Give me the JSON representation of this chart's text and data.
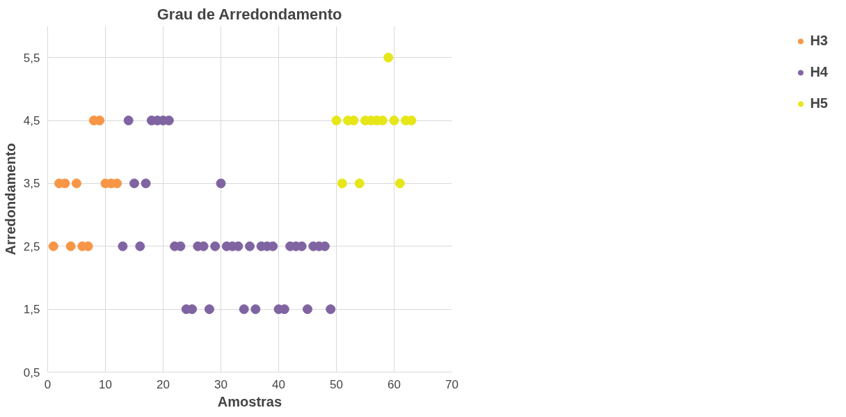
{
  "chart_data": {
    "type": "scatter",
    "title": "Grau de Arredondamento",
    "xlabel": "Amostras",
    "ylabel": "Arredondamento",
    "xlim": [
      0,
      70
    ],
    "xticks": [
      0,
      10,
      20,
      30,
      40,
      50,
      60,
      70
    ],
    "ylim": [
      0.5,
      6.0
    ],
    "yticks": [
      {
        "value": 0.5,
        "label": "0,5"
      },
      {
        "value": 1.5,
        "label": "1,5"
      },
      {
        "value": 2.5,
        "label": "2,5"
      },
      {
        "value": 3.5,
        "label": "3,5"
      },
      {
        "value": 4.5,
        "label": "4,5"
      },
      {
        "value": 5.5,
        "label": "5,5"
      }
    ],
    "grid": true,
    "legend": "right",
    "marker": "circle",
    "series": [
      {
        "name": "H3",
        "color": "#f79646",
        "x": [
          1,
          2,
          3,
          4,
          5,
          6,
          7,
          8,
          9,
          10,
          11,
          12
        ],
        "values": [
          2.5,
          3.5,
          3.5,
          2.5,
          3.5,
          2.5,
          2.5,
          4.5,
          4.5,
          3.5,
          3.5,
          3.5
        ]
      },
      {
        "name": "H4",
        "color": "#8064a2",
        "x": [
          13,
          14,
          15,
          16,
          17,
          18,
          19,
          20,
          21,
          22,
          23,
          24,
          25,
          26,
          27,
          28,
          29,
          30,
          31,
          32,
          33,
          34,
          35,
          36,
          37,
          38,
          39,
          40,
          41,
          42,
          43,
          44,
          45,
          46,
          47,
          48,
          49
        ],
        "values": [
          2.5,
          4.5,
          3.5,
          2.5,
          3.5,
          4.5,
          4.5,
          4.5,
          4.5,
          2.5,
          2.5,
          1.5,
          1.5,
          2.5,
          2.5,
          1.5,
          2.5,
          3.5,
          2.5,
          2.5,
          2.5,
          1.5,
          2.5,
          1.5,
          2.5,
          2.5,
          2.5,
          1.5,
          1.5,
          2.5,
          2.5,
          2.5,
          1.5,
          2.5,
          2.5,
          2.5,
          1.5
        ]
      },
      {
        "name": "H5",
        "color": "#e6e619",
        "x": [
          50,
          51,
          52,
          53,
          54,
          55,
          56,
          57,
          58,
          59,
          60,
          61,
          62,
          63
        ],
        "values": [
          4.5,
          3.5,
          4.5,
          4.5,
          3.5,
          4.5,
          4.5,
          4.5,
          4.5,
          5.5,
          4.5,
          3.5,
          4.5,
          4.5
        ]
      }
    ]
  }
}
